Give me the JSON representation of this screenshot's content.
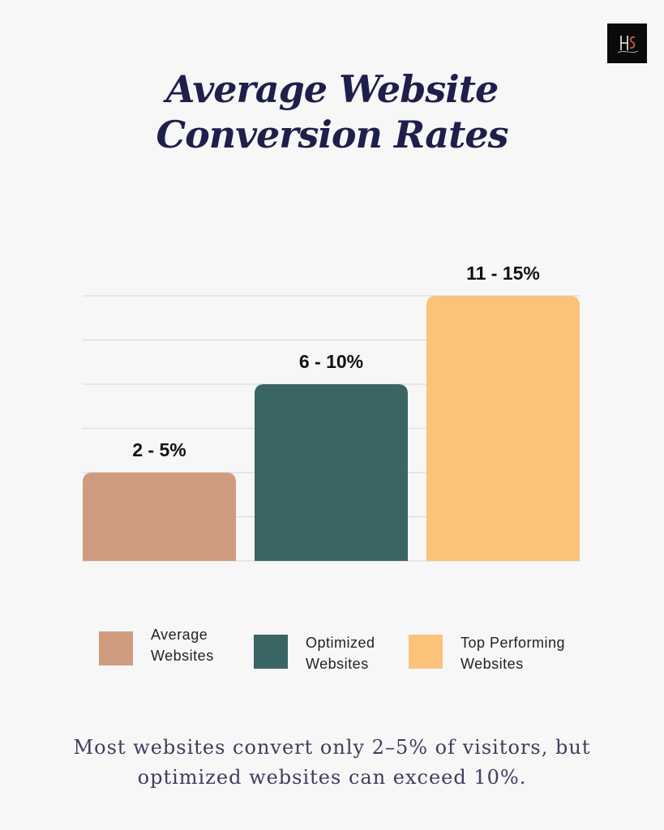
{
  "logo": {
    "text": "HS",
    "icon": "hs-monogram-logo"
  },
  "title": {
    "line1": "Average Website",
    "line2": "Conversion Rates"
  },
  "chart_data": {
    "type": "bar",
    "categories": [
      "Average Websites",
      "Optimized Websites",
      "Top Performing Websites"
    ],
    "values": [
      5,
      10,
      15
    ],
    "data_labels": [
      "2 - 5%",
      "6 - 10%",
      "11 - 15%"
    ],
    "colors": [
      "#d09c80",
      "#3a6565",
      "#fac379"
    ],
    "ylim": [
      0,
      15
    ],
    "grid": true,
    "gridlines": [
      2.5,
      5,
      7.5,
      10,
      12.5,
      15
    ],
    "legend_position": "bottom"
  },
  "legend": [
    {
      "line1": "Average",
      "line2": "Websites"
    },
    {
      "line1": "Optimized",
      "line2": "Websites"
    },
    {
      "line1": "Top Performing",
      "line2": "Websites"
    }
  ],
  "footer": {
    "line1": "Most websites convert only 2–5% of visitors, but",
    "line2": "optimized websites can exceed 10%."
  }
}
